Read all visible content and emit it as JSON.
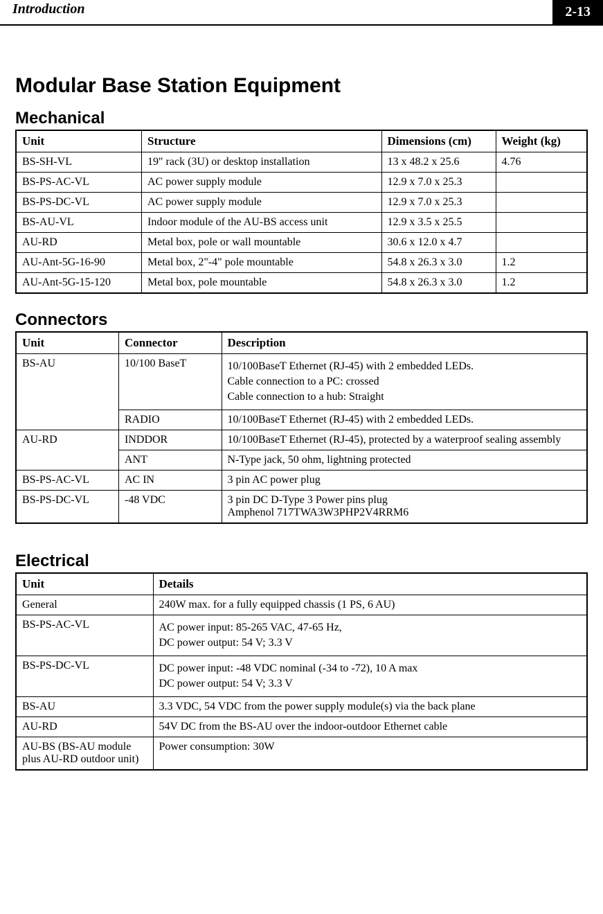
{
  "header": {
    "title": "Introduction",
    "page": "2-13"
  },
  "h1": "Modular Base Station Equipment",
  "mechanical": {
    "heading": "Mechanical",
    "columns": [
      "Unit",
      "Structure",
      "Dimensions (cm)",
      "Weight (kg)"
    ],
    "col_widths": [
      "22%",
      "42%",
      "20%",
      "16%"
    ],
    "rows": [
      [
        "BS-SH-VL",
        "19\" rack (3U) or desktop installation",
        "13 x 48.2 x 25.6",
        "4.76"
      ],
      [
        "BS-PS-AC-VL",
        "AC power supply module",
        "12.9 x 7.0 x 25.3",
        ""
      ],
      [
        "BS-PS-DC-VL",
        "AC power supply module",
        "12.9 x 7.0 x 25.3",
        ""
      ],
      [
        "BS-AU-VL",
        "Indoor module of the AU-BS access unit",
        "12.9 x 3.5 x 25.5",
        ""
      ],
      [
        "AU-RD",
        "Metal box, pole or wall mountable",
        "30.6 x 12.0 x 4.7",
        ""
      ],
      [
        "AU-Ant-5G-16-90",
        "Metal box, 2\"-4\" pole mountable",
        "54.8 x 26.3 x 3.0",
        "1.2"
      ],
      [
        "AU-Ant-5G-15-120",
        "Metal box, pole mountable",
        "54.8 x 26.3 x 3.0",
        "1.2"
      ]
    ]
  },
  "connectors": {
    "heading": "Connectors",
    "columns": [
      "Unit",
      "Connector",
      "Description"
    ],
    "col_widths": [
      "18%",
      "18%",
      "64%"
    ],
    "r1_unit": "BS-AU",
    "r1_conn": "10/100 BaseT",
    "r1_desc1": "10/100BaseT Ethernet (RJ-45) with 2 embedded LEDs.",
    "r1_desc2": "Cable connection to a PC:  crossed",
    "r1_desc3": "Cable connection to a hub:  Straight",
    "r2_conn": "RADIO",
    "r2_desc": "10/100BaseT Ethernet (RJ-45) with 2 embedded LEDs.",
    "r3_unit": "AU-RD",
    "r3_conn": "INDDOR",
    "r3_desc": "10/100BaseT Ethernet (RJ-45), protected by a waterproof sealing assembly",
    "r4_conn": "ANT",
    "r4_desc": "N-Type jack, 50 ohm, lightning protected",
    "r5_unit": "BS-PS-AC-VL",
    "r5_conn": "AC IN",
    "r5_desc": "3 pin AC power plug",
    "r6_unit": "BS-PS-DC-VL",
    "r6_conn": "-48 VDC",
    "r6_desc1": "3 pin DC D-Type 3 Power pins plug",
    "r6_desc2": "Amphenol 717TWA3W3PHP2V4RRM6"
  },
  "electrical": {
    "heading": "Electrical",
    "columns": [
      "Unit",
      "Details"
    ],
    "col_widths": [
      "24%",
      "76%"
    ],
    "r1_unit": "General",
    "r1_det": "240W max. for a fully equipped chassis (1 PS, 6 AU)",
    "r2_unit": "BS-PS-AC-VL",
    "r2_det1": "AC power input: 85-265 VAC, 47-65 Hz,",
    "r2_det2": "DC power output: 54 V; 3.3 V",
    "r3_unit": "BS-PS-DC-VL",
    "r3_det1": "DC power input: -48 VDC nominal (-34 to -72), 10 A max",
    "r3_det2": "DC power output: 54 V; 3.3 V",
    "r4_unit": "BS-AU",
    "r4_det": "3.3 VDC, 54 VDC from the power supply module(s) via the back plane",
    "r5_unit": "AU-RD",
    "r5_det": "54V DC from the BS-AU over the indoor-outdoor Ethernet cable",
    "r6_unit": "AU-BS (BS-AU module plus AU-RD outdoor unit)",
    "r6_det": "Power consumption: 30W"
  }
}
